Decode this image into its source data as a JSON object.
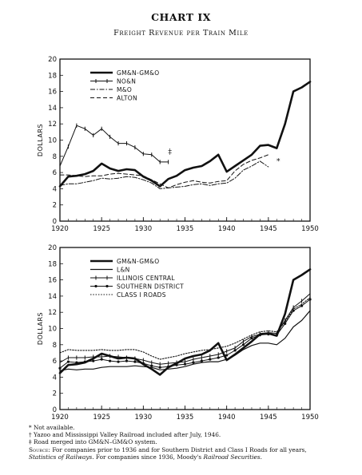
{
  "title": "CHART IX",
  "subtitle": "Freight Revenue per Train Mile",
  "chart_data": [
    {
      "type": "line",
      "ylabel": "DOLLARS",
      "xlim": [
        1920,
        1950
      ],
      "ylim": [
        0,
        20
      ],
      "xticks": [
        "1920",
        "1925",
        "1930",
        "1935",
        "1940",
        "1945",
        "1950"
      ],
      "yticks": [
        "0",
        "2",
        "4",
        "6",
        "8",
        "10",
        "12",
        "14",
        "16",
        "18",
        "20"
      ],
      "legend_position": "top-left",
      "series": [
        {
          "name": "GM&N-GM&O",
          "style": "thick",
          "x": [
            1920,
            1921,
            1922,
            1923,
            1924,
            1925,
            1926,
            1927,
            1928,
            1929,
            1930,
            1931,
            1932,
            1933,
            1934,
            1935,
            1936,
            1937,
            1938,
            1939,
            1940,
            1941,
            1942,
            1943,
            1944,
            1945,
            1946,
            1947,
            1948,
            1949,
            1950
          ],
          "y": [
            4.3,
            5.5,
            5.6,
            5.8,
            6.2,
            7.1,
            6.5,
            6.2,
            6.4,
            6.3,
            5.5,
            5.0,
            4.3,
            5.2,
            5.6,
            6.3,
            6.6,
            6.8,
            7.4,
            8.2,
            6.1,
            6.8,
            7.5,
            8.2,
            9.3,
            9.4,
            9.0,
            12.0,
            16.0,
            16.5,
            17.2
          ]
        },
        {
          "name": "NO&N",
          "style": "crossmark",
          "x": [
            1920,
            1921,
            1922,
            1923,
            1924,
            1925,
            1926,
            1927,
            1928,
            1929,
            1930,
            1931,
            1932,
            1933
          ],
          "y": [
            6.8,
            9.2,
            11.8,
            11.4,
            10.6,
            11.4,
            10.4,
            9.6,
            9.6,
            9.1,
            8.3,
            8.2,
            7.3,
            7.3
          ]
        },
        {
          "name": "M&O",
          "style": "dashdot",
          "x": [
            1920,
            1921,
            1922,
            1923,
            1924,
            1925,
            1926,
            1927,
            1928,
            1929,
            1930,
            1931,
            1932,
            1933,
            1934,
            1935,
            1936,
            1937,
            1938,
            1939,
            1940,
            1941,
            1942,
            1943,
            1944,
            1945
          ],
          "y": [
            4.4,
            4.6,
            4.6,
            4.8,
            5.0,
            5.3,
            5.2,
            5.3,
            5.5,
            5.4,
            5.1,
            4.7,
            4.0,
            4.1,
            4.2,
            4.3,
            4.5,
            4.6,
            4.4,
            4.6,
            4.7,
            5.3,
            6.3,
            6.8,
            7.4,
            6.7
          ]
        },
        {
          "name": "ALTON",
          "style": "dashed",
          "x": [
            1920,
            1921,
            1922,
            1923,
            1924,
            1925,
            1926,
            1927,
            1928,
            1929,
            1930,
            1931,
            1932,
            1933,
            1934,
            1935,
            1936,
            1937,
            1938,
            1939,
            1940,
            1941,
            1942,
            1943,
            1944,
            1945
          ],
          "y": [
            5.7,
            5.7,
            5.6,
            5.5,
            5.6,
            5.6,
            5.8,
            5.9,
            5.8,
            5.7,
            5.6,
            5.1,
            4.6,
            4.1,
            4.5,
            4.8,
            5.0,
            4.8,
            4.7,
            4.9,
            5.0,
            6.2,
            7.0,
            7.5,
            7.8,
            8.2
          ]
        }
      ],
      "annotations": [
        {
          "text": "‡",
          "x": 1933,
          "y": 8.3
        },
        {
          "text": "*",
          "x": 1946,
          "y": 7.1
        }
      ]
    },
    {
      "type": "line",
      "ylabel": "DOLLARS",
      "xlim": [
        1920,
        1950
      ],
      "ylim": [
        0,
        20
      ],
      "xticks": [
        "1920",
        "1925",
        "1930",
        "1935",
        "1940",
        "1945",
        "1950"
      ],
      "yticks": [
        "0",
        "2",
        "4",
        "6",
        "8",
        "10",
        "12",
        "14",
        "16",
        "18",
        "20"
      ],
      "legend_position": "top-left",
      "series": [
        {
          "name": "GM&N-GM&O",
          "style": "thick",
          "x": [
            1920,
            1921,
            1922,
            1923,
            1924,
            1925,
            1926,
            1927,
            1928,
            1929,
            1930,
            1931,
            1932,
            1933,
            1934,
            1935,
            1936,
            1937,
            1938,
            1939,
            1940,
            1941,
            1942,
            1943,
            1944,
            1945,
            1946,
            1947,
            1948,
            1949,
            1950
          ],
          "y": [
            4.5,
            5.5,
            5.6,
            5.8,
            6.3,
            6.9,
            6.6,
            6.3,
            6.4,
            6.3,
            5.6,
            5.0,
            4.3,
            5.2,
            5.7,
            6.3,
            6.6,
            6.8,
            7.3,
            8.2,
            6.1,
            6.8,
            7.6,
            8.4,
            9.3,
            9.4,
            9.1,
            11.8,
            16.0,
            16.6,
            17.3
          ]
        },
        {
          "name": "L&N",
          "style": "solid",
          "x": [
            1920,
            1921,
            1922,
            1923,
            1924,
            1925,
            1926,
            1927,
            1928,
            1929,
            1930,
            1931,
            1932,
            1933,
            1934,
            1935,
            1936,
            1937,
            1938,
            1939,
            1940,
            1941,
            1942,
            1943,
            1944,
            1945,
            1946,
            1947,
            1948,
            1949,
            1950
          ],
          "y": [
            4.8,
            5.0,
            4.9,
            5.0,
            5.0,
            5.2,
            5.3,
            5.3,
            5.3,
            5.4,
            5.3,
            5.2,
            4.9,
            5.0,
            5.1,
            5.3,
            5.6,
            5.8,
            5.9,
            5.9,
            6.2,
            6.7,
            7.4,
            7.9,
            8.2,
            8.2,
            8.0,
            8.8,
            10.2,
            11.0,
            12.2
          ]
        },
        {
          "name": "ILLINOIS CENTRAL",
          "style": "crossmark",
          "x": [
            1920,
            1921,
            1922,
            1923,
            1924,
            1925,
            1926,
            1927,
            1928,
            1929,
            1930,
            1931,
            1932,
            1933,
            1934,
            1935,
            1936,
            1937,
            1938,
            1939,
            1940,
            1941,
            1942,
            1943,
            1944,
            1945,
            1946,
            1947,
            1948,
            1949,
            1950
          ],
          "y": [
            5.8,
            6.4,
            6.4,
            6.4,
            6.5,
            6.5,
            6.6,
            6.5,
            6.4,
            6.3,
            6.1,
            5.8,
            5.6,
            5.7,
            5.8,
            5.9,
            6.2,
            6.4,
            6.6,
            6.8,
            7.2,
            7.6,
            8.4,
            9.0,
            9.3,
            9.5,
            9.4,
            11.0,
            12.6,
            13.4,
            14.3
          ]
        },
        {
          "name": "SOUTHERN DISTRICT",
          "style": "dotmark",
          "x": [
            1920,
            1921,
            1922,
            1923,
            1924,
            1925,
            1926,
            1927,
            1928,
            1929,
            1930,
            1931,
            1932,
            1933,
            1934,
            1935,
            1936,
            1937,
            1938,
            1939,
            1940,
            1941,
            1942,
            1943,
            1944,
            1945,
            1946,
            1947,
            1948,
            1949,
            1950
          ],
          "y": [
            5.1,
            5.9,
            5.8,
            5.9,
            6.0,
            6.2,
            6.0,
            5.9,
            6.0,
            5.9,
            5.7,
            5.4,
            5.2,
            5.3,
            5.5,
            5.6,
            5.8,
            6.0,
            6.2,
            6.4,
            6.7,
            7.3,
            8.0,
            8.8,
            9.2,
            9.3,
            9.2,
            10.6,
            12.2,
            12.8,
            13.6
          ]
        },
        {
          "name": "CLASS I ROADS",
          "style": "dotted",
          "x": [
            1920,
            1921,
            1922,
            1923,
            1924,
            1925,
            1926,
            1927,
            1928,
            1929,
            1930,
            1931,
            1932,
            1933,
            1934,
            1935,
            1936,
            1937,
            1938,
            1939,
            1940,
            1941,
            1942,
            1943,
            1944,
            1945,
            1946,
            1947,
            1948,
            1949,
            1950
          ],
          "y": [
            7.0,
            7.4,
            7.3,
            7.3,
            7.3,
            7.4,
            7.3,
            7.3,
            7.4,
            7.4,
            7.1,
            6.6,
            6.2,
            6.4,
            6.6,
            6.9,
            7.1,
            7.3,
            7.4,
            7.6,
            7.8,
            8.2,
            8.7,
            9.2,
            9.6,
            9.7,
            9.6,
            10.8,
            12.4,
            13.0,
            13.8
          ]
        }
      ],
      "annotations": []
    }
  ],
  "notes": {
    "line1": "* Not available.",
    "line2": "† Yazoo and Mississippi Valley Railroad included after July, 1946.",
    "line3": "‡ Road merged into GM&N–GM&O system.",
    "source_label": "Source:",
    "source_text1": " For companies prior to 1936 and for Southern District and Class I Roads for all years,",
    "source_ital1": "Statistics of Railways",
    "source_text2": ". For companies since 1936, Moody's ",
    "source_ital2": "Railroad Securities",
    "source_text3": "."
  }
}
